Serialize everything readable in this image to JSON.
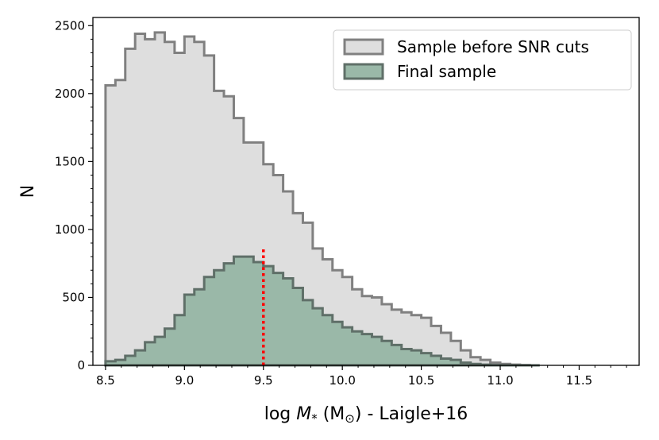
{
  "chart_data": {
    "type": "histogram",
    "xlabel_prefix": "log ",
    "xlabel_var": "M",
    "xlabel_sub": "*",
    "xlabel_unit": " (M",
    "xlabel_unit_sub": "⊙",
    "xlabel_suffix": ") - Laigle+16",
    "ylabel": "N",
    "xlim": [
      8.42,
      11.88
    ],
    "ylim": [
      0,
      2560
    ],
    "xticks": [
      8.5,
      9.0,
      9.5,
      10.0,
      10.5,
      11.0,
      11.5
    ],
    "xtick_labels": [
      "8.5",
      "9.0",
      "9.5",
      "10.0",
      "10.5",
      "11.0",
      "11.5"
    ],
    "yticks": [
      0,
      500,
      1000,
      1500,
      2000,
      2500
    ],
    "ytick_labels": [
      "0",
      "500",
      "1000",
      "1500",
      "2000",
      "2500"
    ],
    "bin_start": 8.5,
    "bin_width": 0.0625,
    "legend_position": "top-right",
    "series": [
      {
        "name": "Sample before SNR cuts",
        "fill": "#dedede",
        "edge": "#808080",
        "values": [
          2060,
          2100,
          2330,
          2440,
          2400,
          2450,
          2380,
          2300,
          2420,
          2380,
          2280,
          2020,
          1980,
          1820,
          1640,
          1640,
          1480,
          1400,
          1280,
          1120,
          1050,
          860,
          780,
          700,
          650,
          560,
          510,
          500,
          450,
          410,
          390,
          370,
          350,
          290,
          240,
          180,
          110,
          60,
          40,
          20,
          10,
          5,
          2,
          0
        ]
      },
      {
        "name": "Final sample",
        "fill": "#9ab8a8",
        "edge": "#5f6f68",
        "values": [
          30,
          40,
          70,
          110,
          170,
          210,
          270,
          370,
          520,
          560,
          650,
          700,
          750,
          800,
          800,
          760,
          730,
          680,
          640,
          570,
          480,
          420,
          370,
          320,
          280,
          250,
          230,
          210,
          180,
          150,
          120,
          110,
          90,
          70,
          50,
          40,
          20,
          10,
          5,
          2,
          0,
          0,
          0,
          0
        ]
      }
    ],
    "annotations": [
      {
        "type": "vline",
        "x": 9.5,
        "y_top": 860,
        "color": "#ff0000",
        "style": "dotted"
      }
    ]
  }
}
